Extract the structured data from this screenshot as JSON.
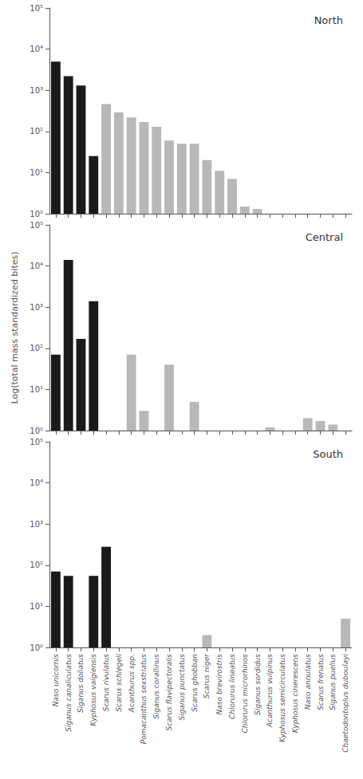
{
  "chart_data": [
    {
      "type": "bar",
      "annotation": "North",
      "categories": [
        null,
        null,
        null,
        null,
        null,
        null,
        null,
        null,
        null,
        null,
        null,
        null,
        null,
        null,
        null,
        null,
        null,
        null,
        null,
        null,
        null,
        null,
        null,
        null
      ],
      "values": [
        5000,
        2200,
        1300,
        25,
        460,
        290,
        220,
        170,
        130,
        60,
        50,
        50,
        20,
        11,
        7,
        1.5,
        1.3,
        null,
        null,
        null,
        null,
        null,
        null,
        null
      ],
      "colors": [
        "#1a1a1a",
        "#1a1a1a",
        "#1a1a1a",
        "#1a1a1a",
        "#b8b8b8",
        "#b8b8b8",
        "#b8b8b8",
        "#b8b8b8",
        "#b8b8b8",
        "#b8b8b8",
        "#b8b8b8",
        "#b8b8b8",
        "#b8b8b8",
        "#b8b8b8",
        "#b8b8b8",
        "#b8b8b8",
        "#b8b8b8",
        "#b8b8b8",
        "#b8b8b8",
        "#b8b8b8",
        "#b8b8b8",
        "#b8b8b8",
        "#b8b8b8",
        "#b8b8b8"
      ],
      "log": "y",
      "ylim": [
        1,
        100000
      ],
      "yticks": [
        {
          "value": 1,
          "label": "10⁰"
        },
        {
          "value": 10,
          "label": "10¹"
        },
        {
          "value": 100,
          "label": "10²"
        },
        {
          "value": 1000,
          "label": "10³"
        },
        {
          "value": 10000,
          "label": "10⁴"
        },
        {
          "value": 100000,
          "label": "10⁵"
        }
      ],
      "grid": false,
      "tick_labels": "y"
    },
    {
      "type": "bar",
      "annotation": "Central",
      "ylabel": "Log(total mass standardized bites)",
      "categories": [
        null,
        null,
        null,
        null,
        null,
        null,
        null,
        null,
        null,
        null,
        null,
        null,
        null,
        null,
        null,
        null,
        null,
        null,
        null,
        null,
        null,
        null,
        null,
        null
      ],
      "values": [
        70,
        14000,
        170,
        1400,
        null,
        null,
        70,
        3,
        null,
        40,
        null,
        5,
        null,
        null,
        null,
        null,
        null,
        1.2,
        null,
        null,
        2,
        1.7,
        1.4,
        null
      ],
      "colors": [
        "#1a1a1a",
        "#1a1a1a",
        "#1a1a1a",
        "#1a1a1a",
        "#b8b8b8",
        "#b8b8b8",
        "#b8b8b8",
        "#b8b8b8",
        "#b8b8b8",
        "#b8b8b8",
        "#b8b8b8",
        "#b8b8b8",
        "#b8b8b8",
        "#b8b8b8",
        "#b8b8b8",
        "#b8b8b8",
        "#b8b8b8",
        "#b8b8b8",
        "#b8b8b8",
        "#b8b8b8",
        "#b8b8b8",
        "#b8b8b8",
        "#b8b8b8",
        "#b8b8b8"
      ],
      "log": "y",
      "ylim": [
        1,
        100000
      ],
      "yticks": [
        {
          "value": 1,
          "label": "10⁰"
        },
        {
          "value": 10,
          "label": "10¹"
        },
        {
          "value": 100,
          "label": "10²"
        },
        {
          "value": 1000,
          "label": "10³"
        },
        {
          "value": 10000,
          "label": "10⁴"
        },
        {
          "value": 100000,
          "label": "10⁵"
        }
      ],
      "grid": false,
      "tick_labels": "y"
    },
    {
      "type": "bar",
      "annotation": "South",
      "categories": [
        "Naso unicornis",
        "Siganus canaliculatus",
        "Siganus doliatus",
        "Kyphosus vaigiensis",
        "Scarus rivulatus",
        "Scarus schlegeli",
        "Acanthurus spp.",
        "Pomacanthus sexstriatus",
        "Siganus corallinus",
        "Scarus flavipectoralis",
        "Siganus punctatus",
        "Scarus ghobban",
        "Scarus niger",
        "Naso brevirostris",
        "Chlorurus lineatus",
        "Chlorurus microrhinos",
        "Siganus sordidus",
        "Acanthurus vulpinus",
        "Kyphosus semicirculatus",
        "Kyphosus cinerescens",
        "Naso annulatus",
        "Scarus frenatus",
        "Siganus puellus",
        "Chaetodontoplus duboulayi"
      ],
      "values": [
        70,
        55,
        null,
        55,
        280,
        null,
        null,
        null,
        null,
        null,
        null,
        null,
        2,
        null,
        null,
        null,
        null,
        null,
        null,
        null,
        null,
        null,
        null,
        5
      ],
      "colors": [
        "#1a1a1a",
        "#1a1a1a",
        "#b8b8b8",
        "#1a1a1a",
        "#1a1a1a",
        "#b8b8b8",
        "#b8b8b8",
        "#b8b8b8",
        "#b8b8b8",
        "#b8b8b8",
        "#b8b8b8",
        "#b8b8b8",
        "#b8b8b8",
        "#b8b8b8",
        "#b8b8b8",
        "#b8b8b8",
        "#b8b8b8",
        "#b8b8b8",
        "#b8b8b8",
        "#b8b8b8",
        "#b8b8b8",
        "#b8b8b8",
        "#b8b8b8",
        "#b8b8b8"
      ],
      "log": "y",
      "ylim": [
        1,
        100000
      ],
      "yticks": [
        {
          "value": 1,
          "label": "10⁰"
        },
        {
          "value": 10,
          "label": "10¹"
        },
        {
          "value": 100,
          "label": "10²"
        },
        {
          "value": 1000,
          "label": "10³"
        },
        {
          "value": 10000,
          "label": "10⁴"
        },
        {
          "value": 100000,
          "label": "10⁵"
        }
      ],
      "grid": false
    }
  ]
}
